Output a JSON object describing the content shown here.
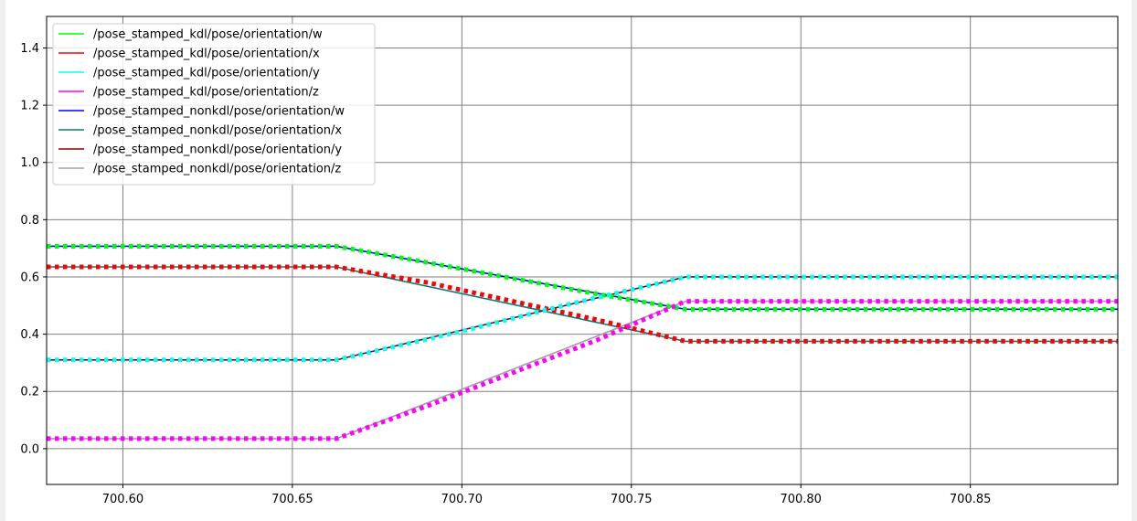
{
  "chart_data": {
    "type": "line",
    "title": "",
    "xlabel": "",
    "ylabel": "",
    "xlim": [
      700.5775,
      700.8935
    ],
    "ylim": [
      -0.125,
      1.51
    ],
    "xticks": [
      {
        "value": 700.6,
        "label": "700.60"
      },
      {
        "value": 700.65,
        "label": "700.65"
      },
      {
        "value": 700.7,
        "label": "700.70"
      },
      {
        "value": 700.75,
        "label": "700.75"
      },
      {
        "value": 700.8,
        "label": "700.80"
      },
      {
        "value": 700.85,
        "label": "700.85"
      }
    ],
    "yticks": [
      {
        "value": 0.0,
        "label": "0.0"
      },
      {
        "value": 0.2,
        "label": "0.2"
      },
      {
        "value": 0.4,
        "label": "0.4"
      },
      {
        "value": 0.6,
        "label": "0.6"
      },
      {
        "value": 0.8,
        "label": "0.8"
      },
      {
        "value": 1.0,
        "label": "1.0"
      },
      {
        "value": 1.2,
        "label": "1.2"
      },
      {
        "value": 1.4,
        "label": "1.4"
      }
    ],
    "grid": true,
    "legend_position": "top-left",
    "series": [
      {
        "name": "/pose_stamped_kdl/pose/orientation/w",
        "color": "#00ff00",
        "style": "dotted",
        "points": [
          [
            700.5775,
            0.707
          ],
          [
            700.663,
            0.707
          ],
          [
            700.69,
            0.65
          ],
          [
            700.74,
            0.54
          ],
          [
            700.766,
            0.487
          ],
          [
            700.8935,
            0.487
          ]
        ]
      },
      {
        "name": "/pose_stamped_kdl/pose/orientation/x",
        "color": "#ff0000",
        "style": "dotted",
        "points": [
          [
            700.5775,
            0.635
          ],
          [
            700.663,
            0.635
          ],
          [
            700.69,
            0.58
          ],
          [
            700.74,
            0.45
          ],
          [
            700.766,
            0.375
          ],
          [
            700.8935,
            0.375
          ]
        ]
      },
      {
        "name": "/pose_stamped_kdl/pose/orientation/y",
        "color": "#00ffff",
        "style": "dotted",
        "points": [
          [
            700.5775,
            0.31
          ],
          [
            700.663,
            0.31
          ],
          [
            700.7,
            0.41
          ],
          [
            700.73,
            0.5
          ],
          [
            700.766,
            0.6
          ],
          [
            700.8935,
            0.6
          ]
        ]
      },
      {
        "name": "/pose_stamped_kdl/pose/orientation/z",
        "color": "#ff00ff",
        "style": "dotted",
        "points": [
          [
            700.5775,
            0.035
          ],
          [
            700.663,
            0.035
          ],
          [
            700.69,
            0.15
          ],
          [
            700.74,
            0.38
          ],
          [
            700.766,
            0.515
          ],
          [
            700.8935,
            0.515
          ]
        ]
      },
      {
        "name": "/pose_stamped_nonkdl/pose/orientation/w",
        "color": "#0000ff",
        "style": "solid",
        "points": [
          [
            700.5775,
            0.707
          ],
          [
            700.663,
            0.707
          ],
          [
            700.766,
            0.487
          ],
          [
            700.8935,
            0.487
          ]
        ]
      },
      {
        "name": "/pose_stamped_nonkdl/pose/orientation/x",
        "color": "#008080",
        "style": "solid",
        "points": [
          [
            700.5775,
            0.635
          ],
          [
            700.663,
            0.635
          ],
          [
            700.766,
            0.375
          ],
          [
            700.8935,
            0.375
          ]
        ]
      },
      {
        "name": "/pose_stamped_nonkdl/pose/orientation/y",
        "color": "#8b0000",
        "style": "solid",
        "points": [
          [
            700.5775,
            0.31
          ],
          [
            700.663,
            0.31
          ],
          [
            700.766,
            0.6
          ],
          [
            700.8935,
            0.6
          ]
        ]
      },
      {
        "name": "/pose_stamped_nonkdl/pose/orientation/z",
        "color": "#a0a0a0",
        "style": "solid",
        "points": [
          [
            700.5775,
            0.035
          ],
          [
            700.663,
            0.035
          ],
          [
            700.766,
            0.515
          ],
          [
            700.8935,
            0.515
          ]
        ]
      }
    ]
  }
}
